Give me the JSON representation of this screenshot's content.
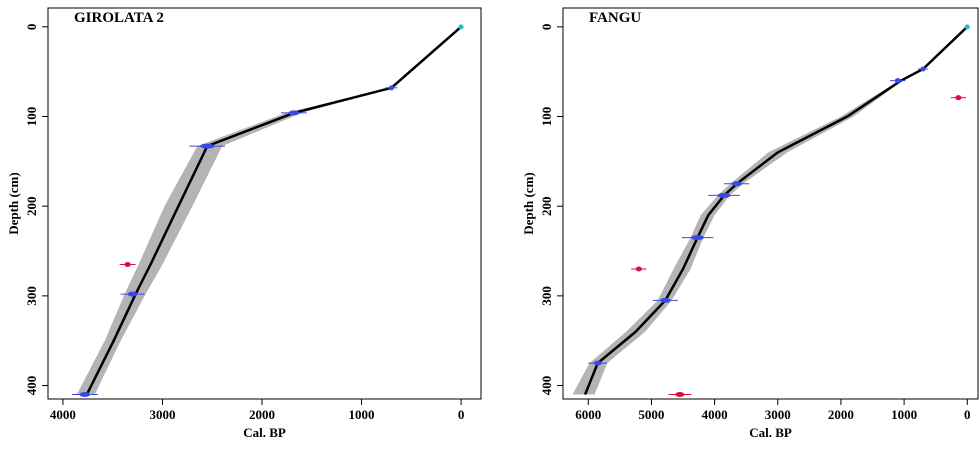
{
  "chart_data": [
    {
      "type": "age-depth",
      "title": "GIROLATA 2",
      "xlabel": "Cal. BP",
      "ylabel": "Depth (cm)",
      "xlim": [
        4150,
        -200
      ],
      "ylim": [
        -21,
        415
      ],
      "xticks": [
        4000,
        3000,
        2000,
        1000,
        0
      ],
      "yticks": [
        0,
        100,
        200,
        300,
        400
      ],
      "depth": [
        0,
        68,
        96,
        133,
        200,
        265,
        298,
        350,
        410
      ],
      "median": [
        0,
        700,
        1680,
        2550,
        2840,
        3120,
        3270,
        3490,
        3760
      ],
      "band_min": [
        0,
        690,
        1600,
        2400,
        2700,
        3000,
        3170,
        3420,
        3680
      ],
      "band_max": [
        0,
        720,
        1760,
        2650,
        2980,
        3240,
        3380,
        3580,
        3860
      ],
      "dates": {
        "depth": [
          0,
          68,
          96,
          133,
          265,
          298,
          410
        ],
        "age": [
          0,
          700,
          1680,
          2550,
          3350,
          3300,
          3780
        ],
        "error": [
          10,
          60,
          130,
          180,
          80,
          120,
          130
        ],
        "kind": [
          "surface",
          "date",
          "date",
          "date",
          "outlier",
          "date",
          "date"
        ]
      },
      "colors": {
        "line": "#000000",
        "band": "#b4b4b4",
        "surface": "#20c0c0",
        "date": "#3a48e8",
        "outlier": "#d8103a"
      }
    },
    {
      "type": "age-depth",
      "title": "FANGU",
      "xlabel": "Cal. BP",
      "ylabel": "Depth (cm)",
      "xlim": [
        6400,
        -170
      ],
      "ylim": [
        -21,
        415
      ],
      "xticks": [
        6000,
        5000,
        4000,
        3000,
        2000,
        1000,
        0
      ],
      "yticks": [
        0,
        100,
        200,
        300,
        400
      ],
      "depth": [
        0,
        47,
        60,
        100,
        140,
        175,
        188,
        210,
        235,
        270,
        305,
        340,
        375,
        410
      ],
      "median": [
        0,
        700,
        1050,
        1900,
        3000,
        3650,
        3850,
        4100,
        4270,
        4500,
        4780,
        5250,
        5850,
        6050
      ],
      "band_min": [
        0,
        680,
        1020,
        1800,
        2850,
        3550,
        3760,
        4000,
        4180,
        4380,
        4680,
        5100,
        5700,
        5900
      ],
      "band_max": [
        0,
        720,
        1080,
        2000,
        3150,
        3750,
        3950,
        4220,
        4380,
        4650,
        4900,
        5400,
        5980,
        6250
      ],
      "dates": {
        "depth": [
          0,
          47,
          60,
          79,
          175,
          188,
          235,
          270,
          305,
          375,
          410
        ],
        "age": [
          0,
          700,
          1100,
          140,
          3650,
          3850,
          4270,
          5200,
          4780,
          5850,
          4550
        ],
        "error": [
          10,
          80,
          120,
          120,
          200,
          250,
          250,
          120,
          200,
          150,
          180
        ],
        "kind": [
          "surface",
          "date",
          "date",
          "outlier",
          "date",
          "date",
          "date",
          "outlier",
          "date",
          "date",
          "outlier"
        ]
      },
      "colors": {
        "line": "#000000",
        "band": "#b4b4b4",
        "surface": "#20c0c0",
        "date": "#3a48e8",
        "outlier": "#d8103a"
      }
    }
  ]
}
